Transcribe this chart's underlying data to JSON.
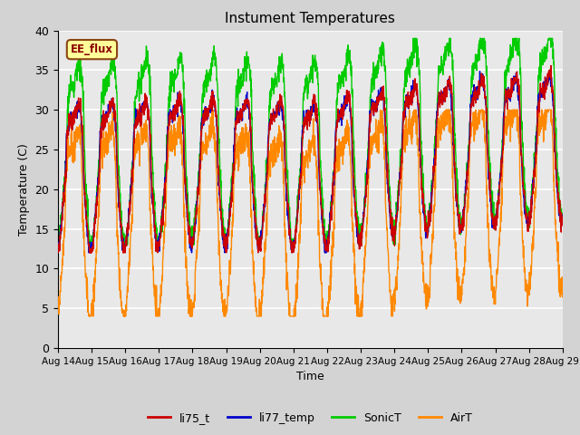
{
  "title": "Instument Temperatures",
  "xlabel": "Time",
  "ylabel": "Temperature (C)",
  "ylim": [
    0,
    40
  ],
  "xlim": [
    0,
    15
  ],
  "annotation_text": "EE_flux",
  "annotation_bg": "#ffff99",
  "annotation_border": "#8b4513",
  "annotation_text_color": "#8b0000",
  "colors": {
    "li75_t": "#cc0000",
    "li77_temp": "#0000cc",
    "SonicT": "#00cc00",
    "AirT": "#ff8800"
  },
  "xtick_labels": [
    "Aug 14",
    "Aug 15",
    "Aug 16",
    "Aug 17",
    "Aug 18",
    "Aug 19",
    "Aug 20",
    "Aug 21",
    "Aug 22",
    "Aug 23",
    "Aug 24",
    "Aug 25",
    "Aug 26",
    "Aug 27",
    "Aug 28",
    "Aug 29"
  ],
  "ytick_values": [
    0,
    5,
    10,
    15,
    20,
    25,
    30,
    35,
    40
  ],
  "legend_entries": [
    "li75_t",
    "li77_temp",
    "SonicT",
    "AirT"
  ]
}
